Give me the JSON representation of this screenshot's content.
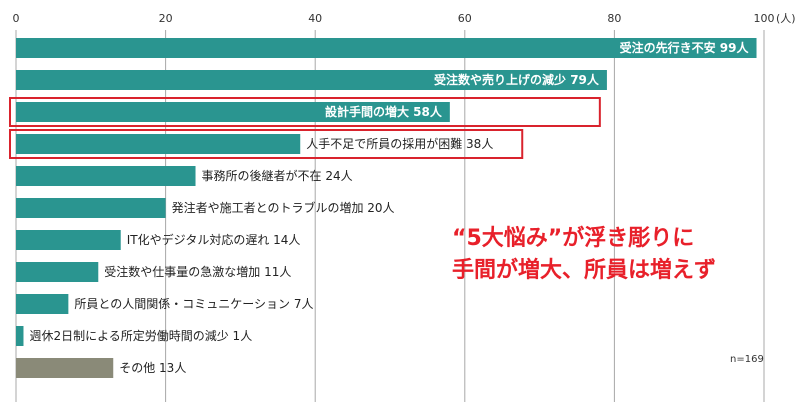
{
  "chart_data": {
    "type": "bar",
    "orientation": "horizontal",
    "unit": "(人)",
    "xlim": [
      0,
      100
    ],
    "xticks": [
      "0",
      "20",
      "40",
      "60",
      "80",
      "100"
    ],
    "categories": [
      "受注の先行き不安",
      "受注数や売り上げの減少",
      "設計手間の増大",
      "人手不足で所員の採用が困難",
      "事務所の後継者が不在",
      "発注者や施工者とのトラブルの増加",
      "IT化やデジタル対応の遅れ",
      "受注数や仕事量の急激な増加",
      "所員との人間関係・コミュニケーション",
      "週休2日制による所定労働時間の減少",
      "その他"
    ],
    "values": [
      99,
      79,
      58,
      38,
      24,
      20,
      14,
      11,
      7,
      1,
      13
    ],
    "value_labels": [
      "99人",
      "79人",
      "58人",
      "38人",
      "24人",
      "20人",
      "14人",
      "11人",
      "7人",
      "1人",
      "13人"
    ],
    "highlighted": [
      2,
      3
    ],
    "colors": {
      "bar": "#2a9590",
      "other_bar": "#8a8a78",
      "highlight_box": "#d9232d",
      "grid": "#a8a8a8"
    },
    "footnote": "n=169",
    "grid": true
  },
  "headline": {
    "line1": "“5大悩み”が浮き彫りに",
    "line2": "手間が増大、所員は増えず"
  }
}
